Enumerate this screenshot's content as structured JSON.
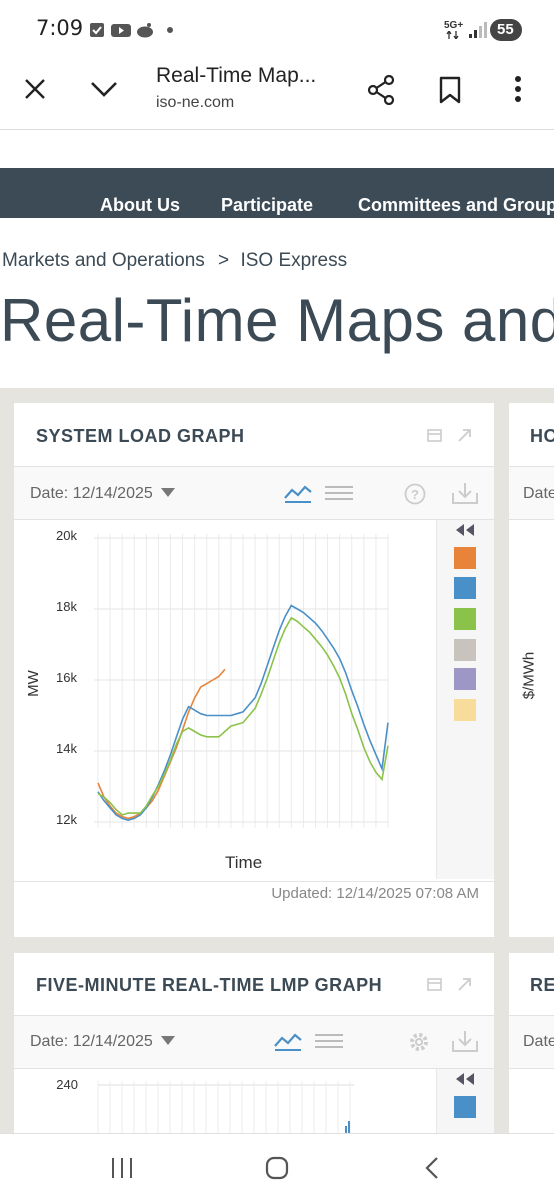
{
  "status_bar": {
    "time": "7:09",
    "network": "5G+",
    "battery": "55"
  },
  "browser": {
    "page_title": "Real-Time Map...",
    "url": "iso-ne.com"
  },
  "nav": {
    "items": [
      "About Us",
      "Participate",
      "Committees and Groups"
    ]
  },
  "breadcrumb": {
    "parent": "Markets and Operations",
    "separator": ">",
    "current": "ISO Express"
  },
  "page_heading": "Real-Time Maps and",
  "system_load": {
    "title": "SYSTEM LOAD GRAPH",
    "date_label": "Date: 12/14/2025",
    "y_label": "MW",
    "x_label": "Time",
    "y_ticks": [
      "20k",
      "18k",
      "16k",
      "14k",
      "12k"
    ],
    "updated": "Updated: 12/14/2025 07:08 AM",
    "legend_colors": [
      "#e8843a",
      "#4a90c8",
      "#8bc34a",
      "#c8c4bd",
      "#9c97c4",
      "#f7dc9c"
    ]
  },
  "right_panel_top": {
    "title_fragment": "HO",
    "date_fragment": "Date",
    "y_label": "$/MWh"
  },
  "lmp": {
    "title": "FIVE-MINUTE REAL-TIME LMP GRAPH",
    "date_label": "Date: 12/14/2025",
    "y_tick_top": "240",
    "legend_color": "#4a90c8"
  },
  "right_panel_bottom": {
    "title_fragment": "RE",
    "date_fragment": "Date"
  },
  "chart_data": {
    "type": "line",
    "title": "SYSTEM LOAD GRAPH",
    "xlabel": "Time",
    "ylabel": "MW",
    "ylim": [
      12000,
      20000
    ],
    "x_count": 24,
    "series": [
      {
        "color": "#e8843a",
        "x": [
          0,
          0.5,
          1,
          1.5,
          2,
          2.5,
          3,
          3.5,
          4,
          4.5,
          5,
          5.5,
          6,
          6.5,
          7,
          7.5,
          8,
          8.5,
          9,
          9.5,
          10,
          10.5
        ],
        "values": [
          13100,
          12700,
          12450,
          12250,
          12150,
          12100,
          12150,
          12250,
          12400,
          12600,
          12900,
          13300,
          13700,
          14100,
          14600,
          15100,
          15500,
          15800,
          15900,
          16000,
          16100,
          16300
        ]
      },
      {
        "color": "#4a90c8",
        "x": [
          0,
          0.5,
          1,
          1.5,
          2,
          2.5,
          3,
          3.5,
          4,
          4.5,
          5,
          5.5,
          6,
          6.5,
          7,
          7.5,
          8,
          8.5,
          9,
          9.5,
          10,
          10.5,
          11,
          11.5,
          12,
          12.5,
          13,
          13.5,
          14,
          14.5,
          15,
          15.5,
          16,
          16.5,
          17,
          17.5,
          18,
          18.5,
          19,
          19.5,
          20,
          20.5,
          21,
          21.5,
          22,
          22.5,
          23,
          23.5,
          24
        ],
        "values": [
          12850,
          12600,
          12400,
          12200,
          12100,
          12050,
          12100,
          12200,
          12400,
          12700,
          13050,
          13450,
          13900,
          14400,
          14900,
          15250,
          15150,
          15050,
          15000,
          15000,
          15000,
          15000,
          15000,
          15050,
          15100,
          15300,
          15500,
          15900,
          16400,
          16900,
          17400,
          17800,
          18100,
          18000,
          17900,
          17750,
          17600,
          17400,
          17150,
          16900,
          16600,
          16200,
          15700,
          15250,
          14750,
          14300,
          13900,
          13500,
          14800
        ]
      },
      {
        "color": "#8bc34a",
        "x": [
          0,
          0.5,
          1,
          1.5,
          2,
          2.5,
          3,
          3.5,
          4,
          4.5,
          5,
          5.5,
          6,
          6.5,
          7,
          7.5,
          8,
          8.5,
          9,
          9.5,
          10,
          10.5,
          11,
          11.5,
          12,
          12.5,
          13,
          13.5,
          14,
          14.5,
          15,
          15.5,
          16,
          16.5,
          17,
          17.5,
          18,
          18.5,
          19,
          19.5,
          20,
          20.5,
          21,
          21.5,
          22,
          22.5,
          23,
          23.5,
          24
        ],
        "values": [
          12800,
          12700,
          12550,
          12350,
          12200,
          12250,
          12250,
          12250,
          12450,
          12750,
          13000,
          13350,
          13750,
          14200,
          14550,
          14650,
          14550,
          14450,
          14400,
          14400,
          14400,
          14550,
          14700,
          14750,
          14800,
          15000,
          15200,
          15600,
          16050,
          16550,
          17050,
          17450,
          17750,
          17650,
          17500,
          17350,
          17150,
          16950,
          16700,
          16400,
          16050,
          15600,
          15050,
          14600,
          14100,
          13700,
          13400,
          13200,
          14150
        ]
      }
    ]
  }
}
